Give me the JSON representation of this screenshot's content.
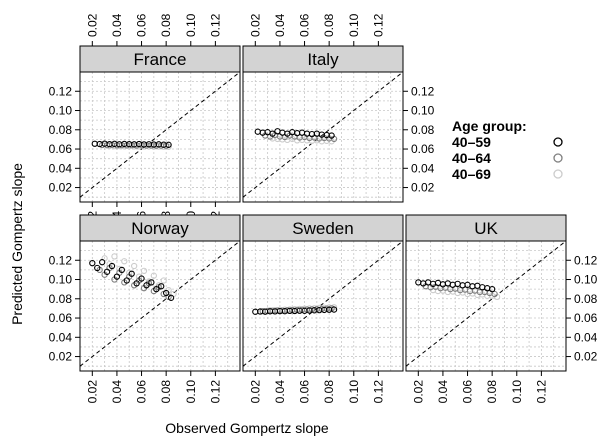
{
  "chart_data": {
    "type": "scatter",
    "xlabel": "Observed Gompertz slope",
    "ylabel": "Predicted Gompertz slope",
    "xlim": [
      0.01,
      0.14
    ],
    "ylim": [
      0.005,
      0.14
    ],
    "x_ticks": [
      "0.02",
      "0.04",
      "0.06",
      "0.08",
      "0.10",
      "0.12"
    ],
    "y_ticks": [
      "0.02",
      "0.04",
      "0.06",
      "0.08",
      "0.10",
      "0.12"
    ],
    "grid": true,
    "reference_line": "y = x",
    "legend": {
      "title": "Age group:",
      "position": "right",
      "entries": [
        {
          "label": "40–59",
          "color": "#000000"
        },
        {
          "label": "40–64",
          "color": "#7f7f7f"
        },
        {
          "label": "40–69",
          "color": "#cccccc"
        }
      ]
    },
    "strip_color": "#d3d3d3",
    "panels": [
      {
        "name": "France",
        "series": [
          {
            "group": "40–59",
            "x": [
              0.022,
              0.026,
              0.03,
              0.034,
              0.038,
              0.042,
              0.046,
              0.05,
              0.054,
              0.058,
              0.062,
              0.066,
              0.07,
              0.074,
              0.078,
              0.082
            ],
            "y": [
              0.0655,
              0.0652,
              0.0656,
              0.0651,
              0.0654,
              0.065,
              0.0653,
              0.0651,
              0.0649,
              0.0652,
              0.0648,
              0.065,
              0.0647,
              0.0649,
              0.0645,
              0.0644
            ]
          },
          {
            "group": "40–64",
            "x": [
              0.028,
              0.032,
              0.036,
              0.04,
              0.044,
              0.048,
              0.052,
              0.056,
              0.06,
              0.064,
              0.068,
              0.072,
              0.076,
              0.08
            ],
            "y": [
              0.0642,
              0.064,
              0.0643,
              0.0639,
              0.0641,
              0.0638,
              0.064,
              0.0637,
              0.0639,
              0.0636,
              0.0637,
              0.0635,
              0.0636,
              0.0634
            ]
          },
          {
            "group": "40–69",
            "x": [
              0.034,
              0.038,
              0.042,
              0.046,
              0.05,
              0.054,
              0.058,
              0.062,
              0.066,
              0.07,
              0.074,
              0.078,
              0.082
            ],
            "y": [
              0.0632,
              0.063,
              0.0631,
              0.0628,
              0.0629,
              0.0627,
              0.0628,
              0.0626,
              0.0627,
              0.0625,
              0.0626,
              0.0624,
              0.0623
            ]
          }
        ]
      },
      {
        "name": "Italy",
        "series": [
          {
            "group": "40–59",
            "x": [
              0.022,
              0.026,
              0.03,
              0.034,
              0.038,
              0.042,
              0.046,
              0.05,
              0.054,
              0.058,
              0.062,
              0.066,
              0.07,
              0.074,
              0.078,
              0.082
            ],
            "y": [
              0.078,
              0.077,
              0.0775,
              0.076,
              0.0785,
              0.077,
              0.076,
              0.0775,
              0.0765,
              0.077,
              0.076,
              0.0755,
              0.076,
              0.075,
              0.0745,
              0.074
            ]
          },
          {
            "group": "40–64",
            "x": [
              0.028,
              0.032,
              0.036,
              0.04,
              0.044,
              0.048,
              0.052,
              0.056,
              0.06,
              0.064,
              0.068,
              0.072,
              0.076,
              0.08,
              0.084
            ],
            "y": [
              0.074,
              0.073,
              0.0745,
              0.073,
              0.0725,
              0.074,
              0.073,
              0.072,
              0.0725,
              0.0715,
              0.072,
              0.071,
              0.0715,
              0.071,
              0.0705
            ]
          },
          {
            "group": "40–69",
            "x": [
              0.034,
              0.038,
              0.042,
              0.046,
              0.05,
              0.054,
              0.058,
              0.062,
              0.066,
              0.07,
              0.074,
              0.078,
              0.082
            ],
            "y": [
              0.071,
              0.0705,
              0.07,
              0.0695,
              0.0705,
              0.069,
              0.0695,
              0.069,
              0.0685,
              0.069,
              0.068,
              0.0685,
              0.068
            ]
          }
        ]
      },
      {
        "name": "Norway",
        "series": [
          {
            "group": "40–59",
            "x": [
              0.02,
              0.024,
              0.028,
              0.032,
              0.036,
              0.04,
              0.044,
              0.048,
              0.052,
              0.056,
              0.06,
              0.064,
              0.068,
              0.072,
              0.076,
              0.08,
              0.084
            ],
            "y": [
              0.117,
              0.112,
              0.118,
              0.108,
              0.114,
              0.103,
              0.11,
              0.099,
              0.106,
              0.096,
              0.101,
              0.094,
              0.097,
              0.09,
              0.093,
              0.086,
              0.081
            ]
          },
          {
            "group": "40–64",
            "x": [
              0.026,
              0.03,
              0.034,
              0.038,
              0.042,
              0.046,
              0.05,
              0.054,
              0.058,
              0.062,
              0.066,
              0.07,
              0.074,
              0.078,
              0.082
            ],
            "y": [
              0.11,
              0.105,
              0.112,
              0.1,
              0.107,
              0.097,
              0.103,
              0.094,
              0.099,
              0.091,
              0.096,
              0.088,
              0.092,
              0.085,
              0.082
            ]
          },
          {
            "group": "40–69",
            "x": [
              0.03,
              0.034,
              0.038,
              0.042,
              0.046,
              0.05,
              0.054,
              0.058,
              0.062,
              0.066,
              0.07,
              0.074,
              0.078,
              0.082,
              0.086
            ],
            "y": [
              0.122,
              0.116,
              0.124,
              0.111,
              0.119,
              0.107,
              0.114,
              0.103,
              0.109,
              0.098,
              0.104,
              0.094,
              0.099,
              0.089,
              0.085
            ]
          }
        ]
      },
      {
        "name": "Sweden",
        "series": [
          {
            "group": "40–59",
            "x": [
              0.02,
              0.024,
              0.028,
              0.032,
              0.036,
              0.04,
              0.044,
              0.048,
              0.052,
              0.056,
              0.06,
              0.064,
              0.068,
              0.072,
              0.076,
              0.08,
              0.084
            ],
            "y": [
              0.0665,
              0.0668,
              0.0666,
              0.067,
              0.0669,
              0.0672,
              0.0671,
              0.0674,
              0.0673,
              0.0676,
              0.0675,
              0.0678,
              0.068,
              0.0682,
              0.0684,
              0.0686,
              0.0688
            ]
          },
          {
            "group": "40–64",
            "x": [
              0.026,
              0.03,
              0.034,
              0.038,
              0.042,
              0.046,
              0.05,
              0.054,
              0.058,
              0.062,
              0.066,
              0.07,
              0.074,
              0.078,
              0.082
            ],
            "y": [
              0.0672,
              0.0674,
              0.0676,
              0.0678,
              0.0677,
              0.068,
              0.0682,
              0.0684,
              0.0686,
              0.0688,
              0.069,
              0.0692,
              0.0694,
              0.0697,
              0.07
            ]
          },
          {
            "group": "40–69",
            "x": [
              0.032,
              0.036,
              0.04,
              0.044,
              0.048,
              0.052,
              0.056,
              0.06,
              0.064,
              0.068,
              0.072,
              0.076,
              0.08,
              0.084
            ],
            "y": [
              0.068,
              0.0682,
              0.0685,
              0.0687,
              0.069,
              0.0692,
              0.0695,
              0.0697,
              0.07,
              0.0702,
              0.0705,
              0.0707,
              0.071,
              0.0712
            ]
          }
        ]
      },
      {
        "name": "UK",
        "series": [
          {
            "group": "40–59",
            "x": [
              0.02,
              0.024,
              0.028,
              0.032,
              0.036,
              0.04,
              0.044,
              0.048,
              0.052,
              0.056,
              0.06,
              0.064,
              0.068,
              0.072,
              0.076,
              0.08
            ],
            "y": [
              0.097,
              0.096,
              0.097,
              0.0955,
              0.0965,
              0.095,
              0.096,
              0.0945,
              0.0955,
              0.094,
              0.0945,
              0.093,
              0.0935,
              0.092,
              0.091,
              0.09
            ]
          },
          {
            "group": "40–64",
            "x": [
              0.026,
              0.03,
              0.034,
              0.038,
              0.042,
              0.046,
              0.05,
              0.054,
              0.058,
              0.062,
              0.066,
              0.07,
              0.074,
              0.078,
              0.082
            ],
            "y": [
              0.093,
              0.092,
              0.0925,
              0.091,
              0.0915,
              0.09,
              0.0905,
              0.089,
              0.0895,
              0.088,
              0.0885,
              0.087,
              0.087,
              0.086,
              0.085
            ]
          },
          {
            "group": "40–69",
            "x": [
              0.032,
              0.036,
              0.04,
              0.044,
              0.048,
              0.052,
              0.056,
              0.06,
              0.064,
              0.068,
              0.072,
              0.076,
              0.08,
              0.084
            ],
            "y": [
              0.089,
              0.088,
              0.0885,
              0.087,
              0.0875,
              0.086,
              0.0865,
              0.085,
              0.0855,
              0.084,
              0.0845,
              0.083,
              0.083,
              0.082
            ]
          }
        ]
      }
    ]
  }
}
